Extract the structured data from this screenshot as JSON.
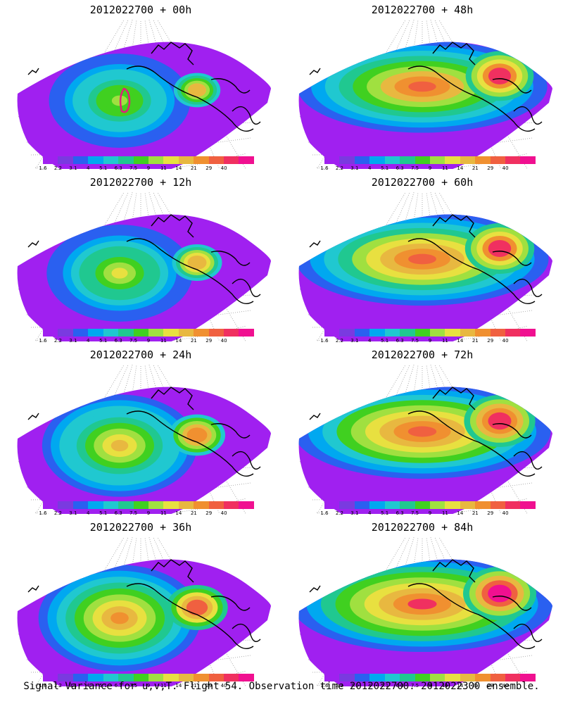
{
  "panels": [
    {
      "title": "2012022700 + 00h",
      "lead_hours": 0
    },
    {
      "title": "2012022700 + 48h",
      "lead_hours": 48
    },
    {
      "title": "2012022700 + 12h",
      "lead_hours": 12
    },
    {
      "title": "2012022700 + 60h",
      "lead_hours": 60
    },
    {
      "title": "2012022700 + 24h",
      "lead_hours": 24
    },
    {
      "title": "2012022700 + 72h",
      "lead_hours": 72
    },
    {
      "title": "2012022700 + 36h",
      "lead_hours": 36
    },
    {
      "title": "2012022700 + 84h",
      "lead_hours": 84
    }
  ],
  "colorbar": {
    "labels": [
      "1.6",
      "2.2",
      "3.1",
      "4",
      "5.1",
      "6.3",
      "7.5",
      "9",
      "11",
      "14",
      "21",
      "29",
      "40"
    ],
    "colors": [
      "#a020f0",
      "#7a3ae0",
      "#2a60f0",
      "#00a8f0",
      "#20c8d0",
      "#20c890",
      "#40d020",
      "#a0e040",
      "#e8e040",
      "#e8b840",
      "#f09030",
      "#f06040",
      "#f03060",
      "#f01090"
    ]
  },
  "colors": {
    "coast": "#000000",
    "grid": "#9a9a9a",
    "max_contour": "#e0207a"
  },
  "caption": "Signal Variance for u,v,T. Flight 54. Observation time 2012022700. 2012022300 ensemble."
}
